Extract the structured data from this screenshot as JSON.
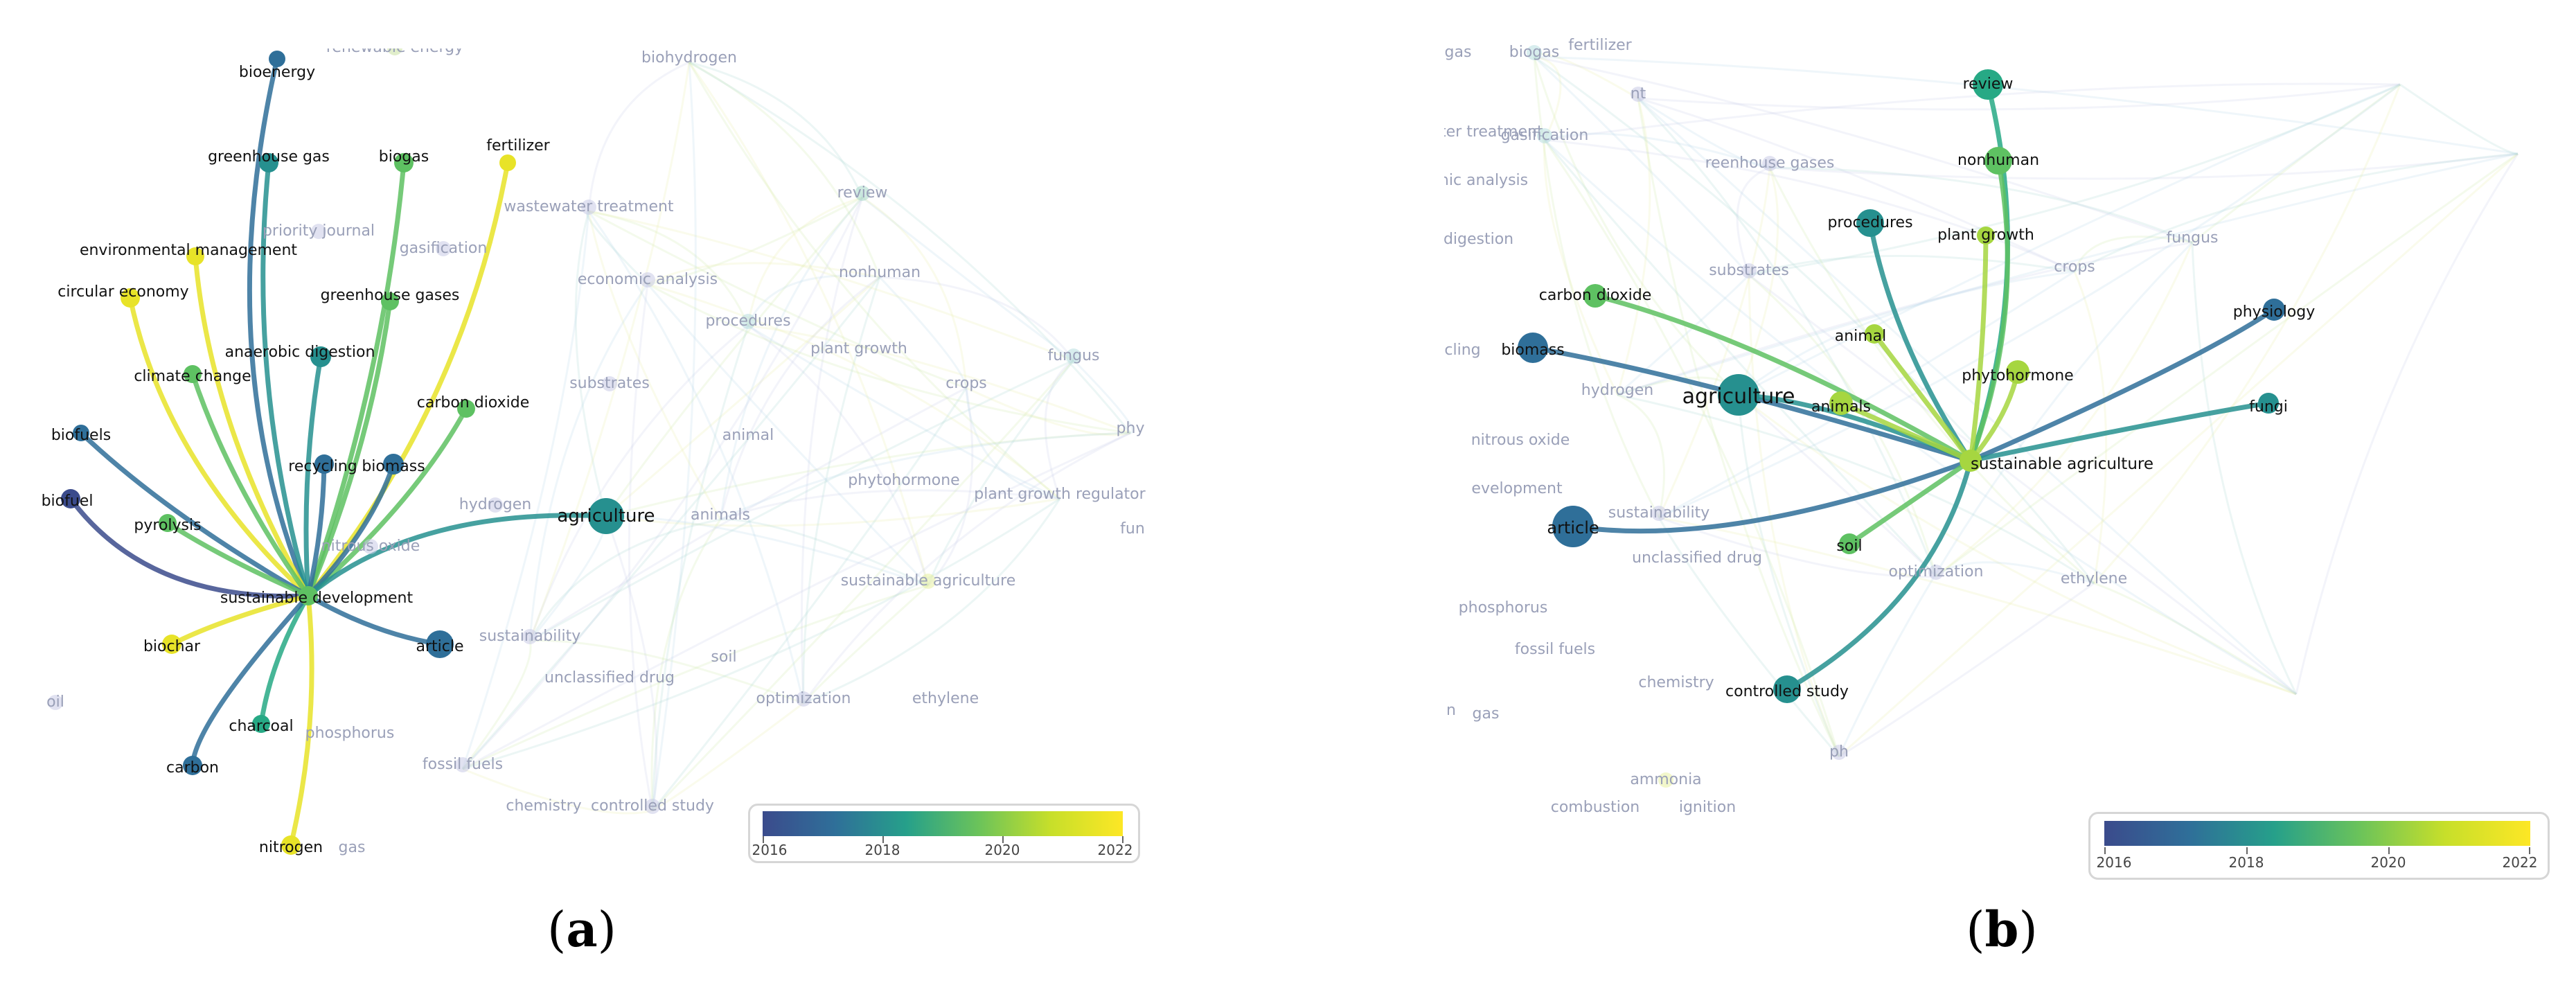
{
  "captions": {
    "a": "a",
    "b": "b"
  },
  "legend": {
    "years": [
      "2016",
      "2018",
      "2020",
      "2022"
    ]
  },
  "colors": {
    "2016": "#3b4b8c",
    "2017": "#2f6f99",
    "2018": "#26908f",
    "2019": "#27a985",
    "2020": "#5ec162",
    "2021": "#a6d640",
    "2022": "#e8e328",
    "faded": "#b8bcd8"
  },
  "panel_a": {
    "hub": "sustainable development",
    "highlighted_terms": [
      {
        "label": "bioenergy",
        "year": 2017
      },
      {
        "label": "greenhouse gas",
        "year": 2018
      },
      {
        "label": "biogas",
        "year": 2020
      },
      {
        "label": "fertilizer",
        "year": 2022
      },
      {
        "label": "environmental management",
        "year": 2022
      },
      {
        "label": "circular economy",
        "year": 2022
      },
      {
        "label": "greenhouse gases",
        "year": 2020
      },
      {
        "label": "anaerobic digestion",
        "year": 2018
      },
      {
        "label": "climate change",
        "year": 2020
      },
      {
        "label": "carbon dioxide",
        "year": 2020
      },
      {
        "label": "biofuels",
        "year": 2017
      },
      {
        "label": "recycling",
        "year": 2017
      },
      {
        "label": "biomass",
        "year": 2017
      },
      {
        "label": "biofuel",
        "year": 2016
      },
      {
        "label": "pyrolysis",
        "year": 2020
      },
      {
        "label": "agriculture",
        "year": 2018
      },
      {
        "label": "sustainable development",
        "year": 2020
      },
      {
        "label": "article",
        "year": 2017
      },
      {
        "label": "biochar",
        "year": 2022
      },
      {
        "label": "charcoal",
        "year": 2019
      },
      {
        "label": "carbon",
        "year": 2017
      },
      {
        "label": "nitrogen",
        "year": 2022
      }
    ],
    "faded_terms": [
      "renewable energy",
      "biohydrogen",
      "wastewater treatment",
      "priority journal",
      "gasification",
      "economic analysis",
      "review",
      "nonhuman",
      "procedures",
      "plant growth",
      "fungus",
      "substrates",
      "crops",
      "animal",
      "hydrogen",
      "animals",
      "nitrous oxide",
      "phytohormone",
      "plant growth regulator",
      "sustainable agriculture",
      "sustainability",
      "soil",
      "unclassified drug",
      "optimization",
      "ethylene",
      "oil",
      "phosphorus",
      "fossil fuels",
      "chemistry",
      "controlled study",
      "gas",
      "phy",
      "fun"
    ]
  },
  "panel_b": {
    "hub": "sustainable agriculture",
    "highlighted_terms": [
      {
        "label": "review",
        "year": 2019
      },
      {
        "label": "nonhuman",
        "year": 2020
      },
      {
        "label": "procedures",
        "year": 2018
      },
      {
        "label": "plant growth",
        "year": 2021
      },
      {
        "label": "carbon dioxide",
        "year": 2020
      },
      {
        "label": "physiology",
        "year": 2017
      },
      {
        "label": "biomass",
        "year": 2017
      },
      {
        "label": "animal",
        "year": 2021
      },
      {
        "label": "agriculture",
        "year": 2018
      },
      {
        "label": "phytohormone",
        "year": 2021
      },
      {
        "label": "fungi",
        "year": 2018
      },
      {
        "label": "animals",
        "year": 2021
      },
      {
        "label": "sustainable agriculture",
        "year": 2021
      },
      {
        "label": "article",
        "year": 2017
      },
      {
        "label": "soil",
        "year": 2020
      },
      {
        "label": "controlled study",
        "year": 2018
      }
    ],
    "faded_terms": [
      "gas",
      "biogas",
      "fertilizer",
      "nt",
      "wastewater treatment",
      "gasification",
      "reenhouse gases",
      "economic analysis",
      "c digestion",
      "fungus",
      "substrates",
      "crops",
      "ycling",
      "hydrogen",
      "nitrous oxide",
      "evelopment",
      "sustainability",
      "unclassified drug",
      "optimization",
      "ethylene",
      "phosphorus",
      "fossil fuels",
      "chemistry",
      "n",
      "gas",
      "ph",
      "ammonia",
      "combustion",
      "ignition"
    ]
  }
}
